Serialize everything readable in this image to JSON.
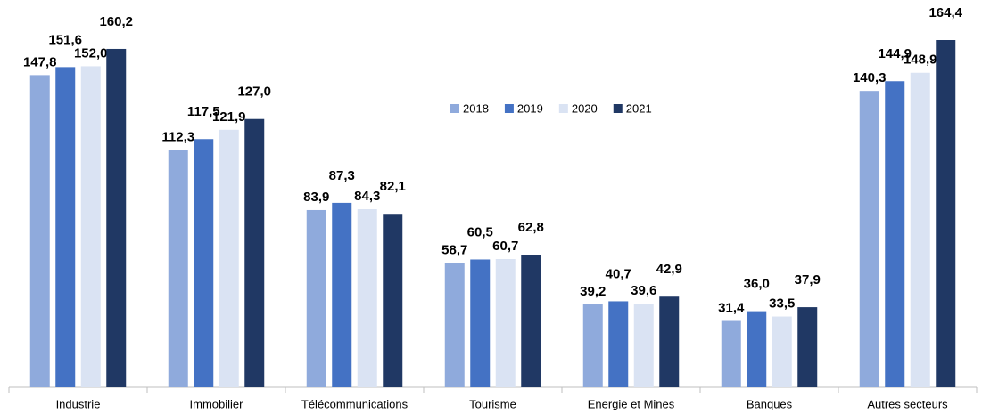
{
  "chart_data": {
    "type": "bar",
    "categories": [
      "Industrie",
      "Immobilier",
      "Télécommunications",
      "Tourisme",
      "Energie et Mines",
      "Banques",
      "Autres secteurs"
    ],
    "series": [
      {
        "name": "2018",
        "color": "#8faadc",
        "values": [
          147.8,
          112.3,
          83.9,
          58.7,
          39.2,
          31.4,
          140.3
        ],
        "value_labels": [
          "147,8",
          "112,3",
          "83,9",
          "58,7",
          "39,2",
          "31,4",
          "140,3"
        ]
      },
      {
        "name": "2019",
        "color": "#4472c4",
        "values": [
          151.6,
          117.5,
          87.3,
          60.5,
          40.7,
          36.0,
          144.9
        ],
        "value_labels": [
          "151,6",
          "117,5",
          "87,3",
          "60,5",
          "40,7",
          "36,0",
          "144,9"
        ]
      },
      {
        "name": "2020",
        "color": "#dae3f3",
        "values": [
          152.0,
          121.9,
          84.3,
          60.7,
          39.6,
          33.5,
          148.9
        ],
        "value_labels": [
          "152,0",
          "121,9",
          "84,3",
          "60,7",
          "39,6",
          "33,5",
          "148,9"
        ]
      },
      {
        "name": "2021",
        "color": "#203864",
        "values": [
          160.2,
          127.0,
          82.1,
          62.8,
          42.9,
          37.9,
          164.4
        ],
        "value_labels": [
          "160,2",
          "127,0",
          "82,1",
          "62,8",
          "42,9",
          "37,9",
          "164,4"
        ]
      }
    ],
    "legend": "top-center"
  }
}
